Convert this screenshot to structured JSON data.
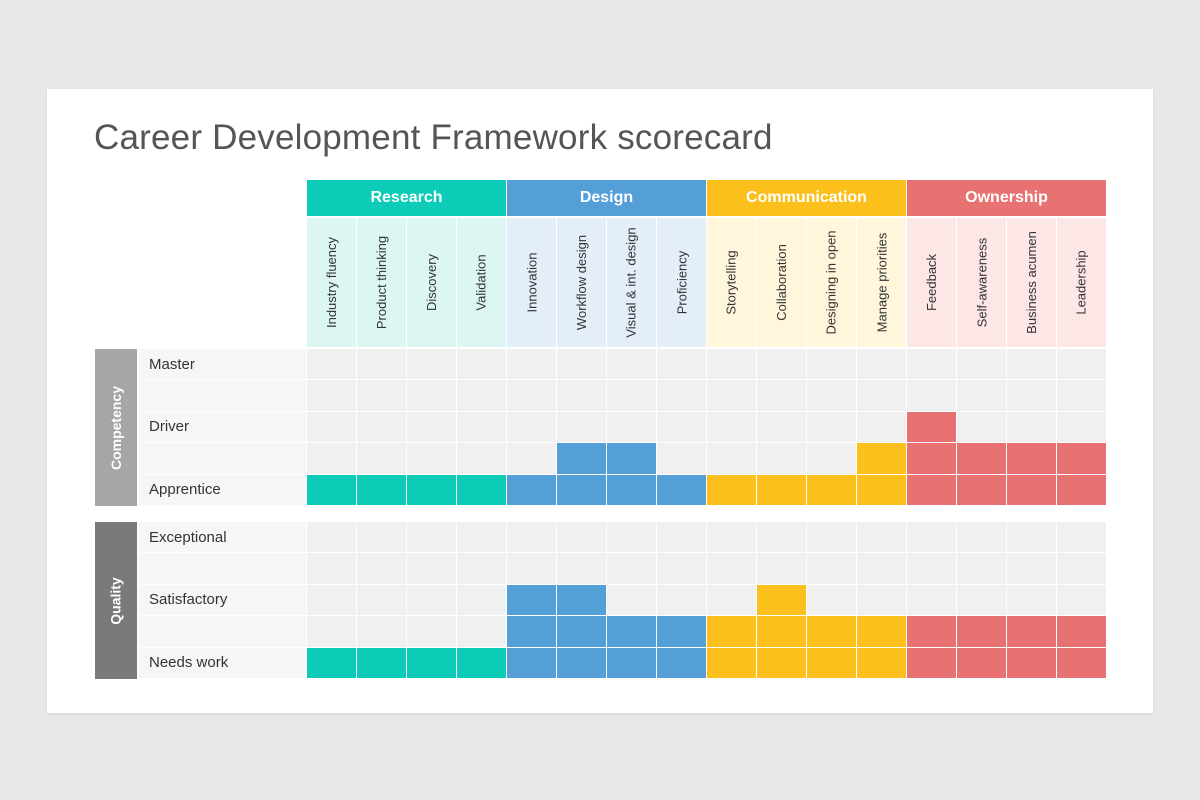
{
  "title": "Career Development Framework scorecard",
  "categories": [
    {
      "name": "Research",
      "color": "#0ccbb7",
      "tint": "#dcf7f3",
      "skills": [
        "Industry fluency",
        "Product thinking",
        "Discovery",
        "Validation"
      ]
    },
    {
      "name": "Design",
      "color": "#559fd8",
      "tint": "#e3eef9",
      "skills": [
        "Innovation",
        "Workflow design",
        "Visual & int. design",
        "Proficiency"
      ]
    },
    {
      "name": "Communication",
      "color": "#fbc01c",
      "tint": "#fff6dc",
      "skills": [
        "Storytelling",
        "Collaboration",
        "Designing in open",
        "Manage priorities"
      ]
    },
    {
      "name": "Ownership",
      "color": "#e87272",
      "tint": "#fce6e6",
      "skills": [
        "Feedback",
        "Self-awareness",
        "Business acumen",
        "Leadership"
      ]
    }
  ],
  "sections": [
    {
      "name": "Competency",
      "band_color": "#a6a6a6",
      "levels": [
        "Master",
        "",
        "Driver",
        "",
        "Apprentice"
      ],
      "scores": [
        1,
        1,
        1,
        1,
        1,
        2,
        2,
        1,
        1,
        1,
        1,
        2,
        3,
        2,
        2,
        2
      ]
    },
    {
      "name": "Quality",
      "band_color": "#7a7a7a",
      "levels": [
        "Exceptional",
        "",
        "Satisfactory",
        "",
        "Needs work"
      ],
      "scores": [
        1,
        1,
        1,
        1,
        3,
        3,
        2,
        2,
        2,
        3,
        2,
        2,
        2,
        2,
        2,
        2
      ]
    }
  ],
  "empty_cell_color": "#f0f0f0"
}
